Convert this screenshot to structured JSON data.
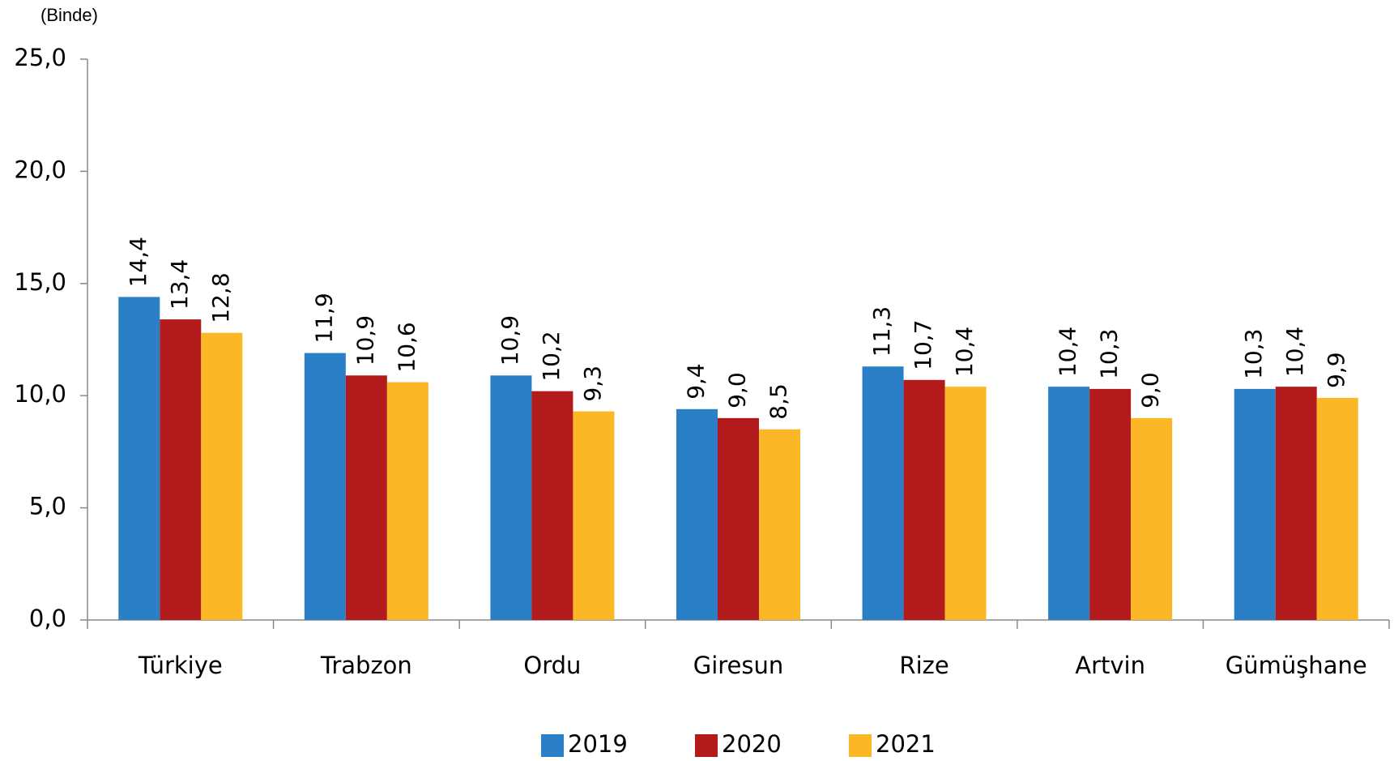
{
  "chart_data": {
    "type": "bar",
    "title": "(Binde)",
    "categories": [
      "Türkiye",
      "Trabzon",
      "Ordu",
      "Giresun",
      "Rize",
      "Artvin",
      "Gümüşhane"
    ],
    "series": [
      {
        "name": "2019",
        "color": "#2a7fc7",
        "values": [
          14.4,
          11.9,
          10.9,
          9.4,
          11.3,
          10.4,
          10.3
        ],
        "value_labels": [
          "14,4",
          "11,9",
          "10,9",
          "9,4",
          "11,3",
          "10,4",
          "10,3"
        ]
      },
      {
        "name": "2020",
        "color": "#b31a1b",
        "values": [
          13.4,
          10.9,
          10.2,
          9.0,
          10.7,
          10.3,
          10.4
        ],
        "value_labels": [
          "13,4",
          "10,9",
          "10,2",
          "9,0",
          "10,7",
          "10,3",
          "10,4"
        ]
      },
      {
        "name": "2021",
        "color": "#fbb726",
        "values": [
          12.8,
          10.6,
          9.3,
          8.5,
          10.4,
          9.0,
          9.9
        ],
        "value_labels": [
          "12,8",
          "10,6",
          "9,3",
          "8,5",
          "10,4",
          "9,0",
          "9,9"
        ]
      }
    ],
    "ylim": [
      0,
      25
    ],
    "yticks": [
      {
        "value": 0,
        "label": "0,0"
      },
      {
        "value": 5,
        "label": "5,0"
      },
      {
        "value": 10,
        "label": "10,0"
      },
      {
        "value": 15,
        "label": "15,0"
      },
      {
        "value": 20,
        "label": "20,0"
      },
      {
        "value": 25,
        "label": "25,0"
      }
    ],
    "legend": "bottom"
  }
}
